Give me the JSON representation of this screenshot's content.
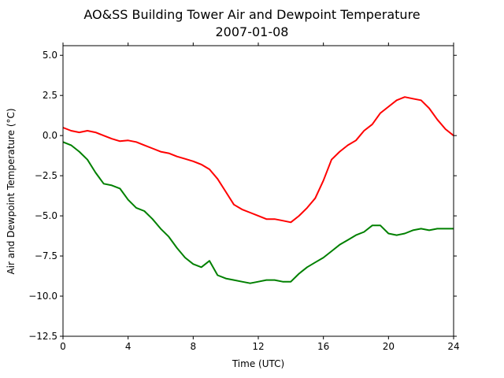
{
  "chart_data": {
    "type": "line",
    "title": "AO&SS Building Tower Air and Dewpoint Temperature",
    "subtitle": "2007-01-08",
    "xlabel": "Time (UTC)",
    "ylabel": "Air and Dewpoint Temperature (°C)",
    "xlim": [
      0,
      24
    ],
    "ylim": [
      -12.5,
      5.6
    ],
    "xticks": [
      0,
      4,
      8,
      12,
      16,
      20,
      24
    ],
    "yticks": [
      5.0,
      2.5,
      0.0,
      -2.5,
      -5.0,
      -7.5,
      -10.0,
      -12.5
    ],
    "ytick_labels": [
      "5.0",
      "2.5",
      "0.0",
      "−2.5",
      "−5.0",
      "−7.5",
      "−10.0",
      "−12.5"
    ],
    "grid": false,
    "legend": "none",
    "series": [
      {
        "color": "#ff0000",
        "x": [
          0,
          0.5,
          1,
          1.5,
          2,
          2.5,
          3,
          3.5,
          4,
          4.5,
          5,
          5.5,
          6,
          6.5,
          7,
          7.5,
          8,
          8.5,
          9,
          9.5,
          10,
          10.5,
          11,
          11.5,
          12,
          12.5,
          13,
          13.5,
          14,
          14.5,
          15,
          15.5,
          16,
          16.5,
          17,
          17.5,
          18,
          18.5,
          19,
          19.5,
          20,
          20.5,
          21,
          21.5,
          22,
          22.5,
          23,
          23.5,
          24
        ],
        "values": [
          0.5,
          0.3,
          0.2,
          0.3,
          0.2,
          0.0,
          -0.2,
          -0.35,
          -0.3,
          -0.4,
          -0.6,
          -0.8,
          -1.0,
          -1.1,
          -1.3,
          -1.45,
          -1.6,
          -1.8,
          -2.1,
          -2.7,
          -3.5,
          -4.3,
          -4.6,
          -4.8,
          -5.0,
          -5.2,
          -5.2,
          -5.3,
          -5.4,
          -5.0,
          -4.5,
          -3.9,
          -2.8,
          -1.5,
          -1.0,
          -0.6,
          -0.3,
          0.3,
          0.7,
          1.4,
          1.8,
          2.2,
          2.4,
          2.3,
          2.2,
          1.7,
          1.0,
          0.4,
          0.0
        ]
      },
      {
        "color": "#008000",
        "x": [
          0,
          0.5,
          1,
          1.5,
          2,
          2.5,
          3,
          3.5,
          4,
          4.5,
          5,
          5.5,
          6,
          6.5,
          7,
          7.5,
          8,
          8.5,
          9,
          9.5,
          10,
          10.5,
          11,
          11.5,
          12,
          12.5,
          13,
          13.5,
          14,
          14.5,
          15,
          15.5,
          16,
          16.5,
          17,
          17.5,
          18,
          18.5,
          19,
          19.5,
          20,
          20.5,
          21,
          21.5,
          22,
          22.5,
          23,
          23.5,
          24
        ],
        "values": [
          -0.4,
          -0.6,
          -1.0,
          -1.5,
          -2.3,
          -3.0,
          -3.1,
          -3.3,
          -4.0,
          -4.5,
          -4.7,
          -5.2,
          -5.8,
          -6.3,
          -7.0,
          -7.6,
          -8.0,
          -8.2,
          -7.8,
          -8.7,
          -8.9,
          -9.0,
          -9.1,
          -9.2,
          -9.1,
          -9.0,
          -9.0,
          -9.1,
          -9.1,
          -8.6,
          -8.2,
          -7.9,
          -7.6,
          -7.2,
          -6.8,
          -6.5,
          -6.2,
          -6.0,
          -5.6,
          -5.6,
          -6.1,
          -6.2,
          -6.1,
          -5.9,
          -5.8,
          -5.9,
          -5.8,
          -5.8,
          -5.8
        ]
      }
    ]
  }
}
